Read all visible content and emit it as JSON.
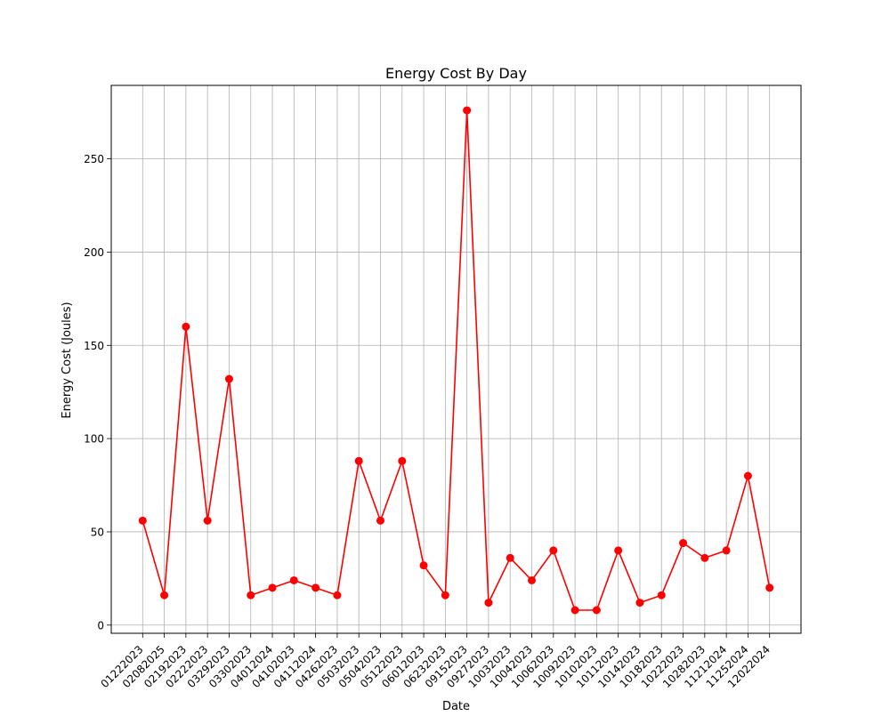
{
  "chart_data": {
    "type": "line",
    "title": "Energy Cost By Day",
    "xlabel": "Date",
    "ylabel": "Energy Cost (Joules)",
    "categories": [
      "01222023",
      "02082025",
      "02192023",
      "02222023",
      "03292023",
      "03302023",
      "04012024",
      "04102023",
      "04112024",
      "04262023",
      "05032023",
      "05042023",
      "05122023",
      "06012023",
      "06232023",
      "09152023",
      "09272023",
      "10032023",
      "10042023",
      "10062023",
      "10092023",
      "10102023",
      "10112023",
      "10142023",
      "10182023",
      "10222023",
      "10282023",
      "11212024",
      "11252024",
      "12022024"
    ],
    "series": [
      {
        "values": [
          56,
          16,
          160,
          56,
          132,
          16,
          20,
          24,
          20,
          16,
          88,
          56,
          88,
          32,
          16,
          276,
          12,
          36,
          24,
          40,
          8,
          8,
          40,
          12,
          16,
          44,
          36,
          40,
          80,
          20
        ]
      }
    ],
    "ylim": [
      -4.4,
      289.4
    ],
    "yticks": [
      0,
      50,
      100,
      150,
      200,
      250
    ],
    "grid": true,
    "line_color": "#ff0000",
    "marker": "circle"
  }
}
